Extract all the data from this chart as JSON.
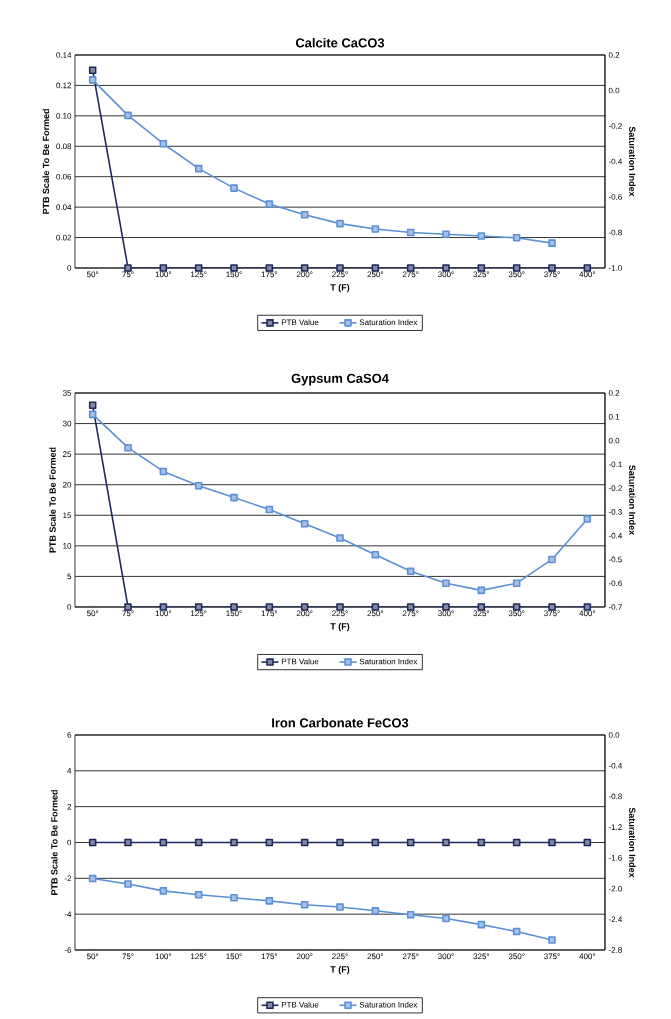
{
  "chart_data": [
    {
      "type": "line",
      "title": "Calcite CaCO3",
      "xlabel": "T (F)",
      "ylabel": "PTB Scale To Be Formed",
      "y2label": "Saturation Index",
      "categories": [
        "50°",
        "75°",
        "100°",
        "125°",
        "150°",
        "175°",
        "200°",
        "225°",
        "250°",
        "275°",
        "300°",
        "325°",
        "350°",
        "375°",
        "400°"
      ],
      "series": [
        {
          "name": "PTB Value",
          "color": "#1f2a5c",
          "values": [
            0.13,
            0,
            0,
            0,
            0,
            0,
            0,
            0,
            0,
            0,
            0,
            0,
            0,
            0,
            0
          ]
        },
        {
          "name": "Saturation Index",
          "color": "#5b8fd6",
          "axis": "y2",
          "values": [
            0.06,
            -0.14,
            -0.3,
            -0.44,
            -0.55,
            -0.64,
            -0.7,
            -0.75,
            -0.78,
            -0.8,
            -0.81,
            -0.82,
            -0.83,
            -0.86,
            null
          ]
        }
      ],
      "ylim": [
        0,
        0.14
      ],
      "yticks": [
        0,
        0.02,
        0.04,
        0.06,
        0.08,
        {
          "value": 0.1,
          "label": "0.10"
        },
        0.12,
        0.14
      ],
      "y2lim": [
        -1.0,
        0.2
      ],
      "y2ticks": [
        {
          "value": -1.0,
          "label": "-1.0"
        },
        -0.8,
        -0.6,
        -0.4,
        -0.2,
        {
          "value": 0,
          "label": "0.0"
        },
        0.2
      ],
      "grid": "y",
      "legend": "bottom",
      "marker": "square",
      "line_style": "solid"
    },
    {
      "type": "line",
      "title": "Gypsum CaSO4",
      "xlabel": "T (F)",
      "ylabel": "PTB Scale To Be Formed",
      "y2label": "Saturation Index",
      "categories": [
        "50°",
        "75°",
        "100°",
        "125°",
        "150°",
        "175°",
        "200°",
        "225°",
        "250°",
        "275°",
        "300°",
        "325°",
        "350°",
        "375°",
        "400°"
      ],
      "series": [
        {
          "name": "PTB Value",
          "color": "#1f2a5c",
          "values": [
            33,
            0,
            0,
            0,
            0,
            0,
            0,
            0,
            0,
            0,
            0,
            0,
            0,
            0,
            0
          ]
        },
        {
          "name": "Saturation Index",
          "color": "#5b8fd6",
          "axis": "y2",
          "values": [
            0.11,
            -0.03,
            -0.13,
            -0.19,
            -0.24,
            -0.29,
            -0.35,
            -0.41,
            -0.48,
            -0.55,
            -0.6,
            -0.63,
            -0.6,
            -0.5,
            -0.33
          ]
        }
      ],
      "ylim": [
        0,
        35
      ],
      "yticks": [
        0,
        5,
        10,
        15,
        20,
        25,
        30,
        35
      ],
      "y2lim": [
        -0.7,
        0.2
      ],
      "y2ticks": [
        -0.7,
        -0.6,
        -0.5,
        -0.4,
        -0.3,
        -0.2,
        -0.1,
        {
          "value": 0,
          "label": "0.0"
        },
        0.1,
        0.2
      ],
      "grid": "y",
      "legend": "bottom",
      "marker": "square",
      "line_style": "solid"
    },
    {
      "type": "line",
      "title": "Iron Carbonate FeCO3",
      "xlabel": "T (F)",
      "ylabel": "PTB Scale To Be Formed",
      "y2label": "Saturation Index",
      "categories": [
        "50°",
        "75°",
        "100°",
        "125°",
        "150°",
        "175°",
        "200°",
        "225°",
        "250°",
        "275°",
        "300°",
        "325°",
        "350°",
        "375°",
        "400°"
      ],
      "series": [
        {
          "name": "PTB Value",
          "color": "#1f2a5c",
          "values": [
            0,
            0,
            0,
            0,
            0,
            0,
            0,
            0,
            0,
            0,
            0,
            0,
            0,
            0,
            0
          ]
        },
        {
          "name": "Saturation Index",
          "color": "#5b8fd6",
          "axis": "y2",
          "values": [
            -1.87,
            -1.94,
            -2.03,
            -2.08,
            -2.12,
            -2.16,
            -2.21,
            -2.24,
            -2.29,
            -2.34,
            -2.39,
            -2.47,
            -2.56,
            -2.67,
            null
          ]
        }
      ],
      "ylim": [
        -6,
        6
      ],
      "yticks": [
        -6,
        -4,
        -2,
        0,
        2,
        4,
        6
      ],
      "y2lim": [
        -2.8,
        0
      ],
      "y2ticks": [
        -2.8,
        -2.4,
        {
          "value": -2.0,
          "label": "-2.0"
        },
        -1.6,
        -1.2,
        -0.8,
        -0.4,
        {
          "value": 0,
          "label": "0.0"
        }
      ],
      "grid": "y",
      "legend": "bottom",
      "marker": "square",
      "line_style": "solid"
    }
  ]
}
